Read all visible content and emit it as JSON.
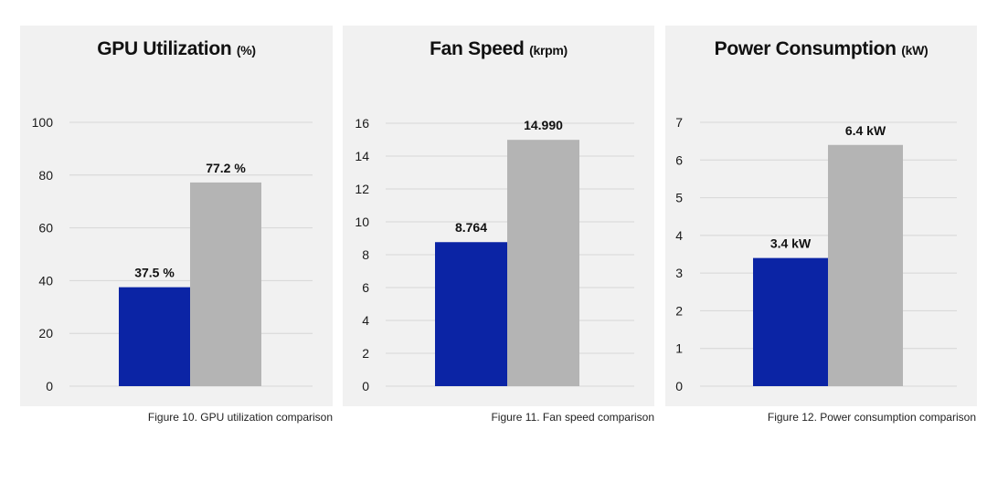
{
  "colors": {
    "series_a": "#0b24a5",
    "series_b": "#b4b4b4",
    "grid": "#d6d6d6",
    "panel_bg": "#f1f1f1"
  },
  "chart_data": [
    {
      "type": "bar",
      "title": "GPU Utilization",
      "title_unit": "(%)",
      "caption": "Figure 10. GPU utilization comparison",
      "ylim": [
        0,
        100
      ],
      "ticks": [
        0,
        20,
        40,
        60,
        80,
        100
      ],
      "tick_labels": [
        "0",
        "20",
        "40",
        "60",
        "80",
        "100"
      ],
      "grid": true,
      "series": [
        {
          "values": [
            37.5
          ],
          "labels": [
            "37.5 %"
          ],
          "color": "#0b24a5"
        },
        {
          "values": [
            77.2
          ],
          "labels": [
            "77.2 %"
          ],
          "color": "#b4b4b4"
        }
      ]
    },
    {
      "type": "bar",
      "title": "Fan Speed",
      "title_unit": "(krpm)",
      "caption": "Figure 11. Fan speed comparison",
      "ylim": [
        0,
        16
      ],
      "ticks": [
        0,
        2,
        4,
        6,
        8,
        10,
        12,
        14,
        16
      ],
      "tick_labels": [
        "0",
        "2",
        "4",
        "6",
        "8",
        "10",
        "12",
        "14",
        "16"
      ],
      "grid": true,
      "series": [
        {
          "values": [
            8.764
          ],
          "labels": [
            "8.764"
          ],
          "color": "#0b24a5"
        },
        {
          "values": [
            14.99
          ],
          "labels": [
            "14.990"
          ],
          "color": "#b4b4b4"
        }
      ]
    },
    {
      "type": "bar",
      "title": "Power Consumption",
      "title_unit": "(kW)",
      "caption": "Figure 12. Power consumption comparison",
      "ylim": [
        0,
        7
      ],
      "ticks": [
        0,
        1,
        2,
        3,
        4,
        5,
        6,
        7
      ],
      "tick_labels": [
        "0",
        "1",
        "2",
        "3",
        "4",
        "5",
        "6",
        "7"
      ],
      "grid": true,
      "series": [
        {
          "values": [
            3.4
          ],
          "labels": [
            "3.4 kW"
          ],
          "color": "#0b24a5"
        },
        {
          "values": [
            6.4
          ],
          "labels": [
            "6.4 kW"
          ],
          "color": "#b4b4b4"
        }
      ]
    }
  ]
}
